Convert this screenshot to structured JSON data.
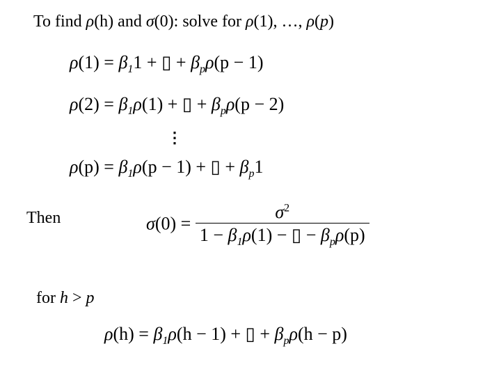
{
  "line1": {
    "t1": "To find ",
    "rho1": "ρ",
    "paren_h": "(h) and ",
    "sigma": "σ",
    "paren_0": "(0): solve for ",
    "rho2": "ρ",
    "paren_1": "(1), …, ",
    "rho3": "ρ",
    "paren_p": "(",
    "p": "p",
    "close": ")"
  },
  "eq1": {
    "lhs_rho": "ρ",
    "lhs": "(1) = ",
    "b1": "β",
    "sub1": "1",
    "one": "1 + ▯  + ",
    "bp": "β",
    "subp": "p",
    "rhop": "ρ",
    "arg": "(p − 1)"
  },
  "eq2": {
    "lhs_rho": "ρ",
    "lhs": "(2) = ",
    "b1": "β",
    "sub1": "1",
    "rho1": "ρ",
    "arg1": "(1) + ▯  + ",
    "bp": "β",
    "subp": "p",
    "rhop": "ρ",
    "argp": "(p − 2)"
  },
  "vdots": "⋮",
  "eq3": {
    "lhs_rho": "ρ",
    "lhs": "(p) = ",
    "b1": "β",
    "sub1": "1",
    "rho1": "ρ",
    "arg1": "(p − 1) + ▯  + ",
    "bp": "β",
    "subp": "p",
    "one": "1"
  },
  "then": "Then",
  "sigma_eq": {
    "sigma": "σ",
    "zero": "(0) = ",
    "num_sigma": "σ",
    "num_sup": "2",
    "den_1": "1 − ",
    "den_b1": "β",
    "den_sub1": "1",
    "den_rho1": "ρ",
    "den_arg1": "(1) − ▯  − ",
    "den_bp": "β",
    "den_subp": "p",
    "den_rhop": "ρ",
    "den_argp": "(p)"
  },
  "forhp": {
    "for": "for ",
    "h": "h",
    "gt": " > ",
    "p": "p"
  },
  "eq4": {
    "lhs_rho": "ρ",
    "lhs": "(h) = ",
    "b1": "β",
    "sub1": "1",
    "rho1": "ρ",
    "arg1": "(h − 1) + ▯  + ",
    "bp": "β",
    "subp": "p",
    "rhop": "ρ",
    "argp": "(h − p)"
  },
  "colors": {
    "text": "#000000",
    "background": "#ffffff"
  },
  "fonts": {
    "body": "Times New Roman",
    "body_size_pt": 18,
    "math_size_pt": 20
  }
}
